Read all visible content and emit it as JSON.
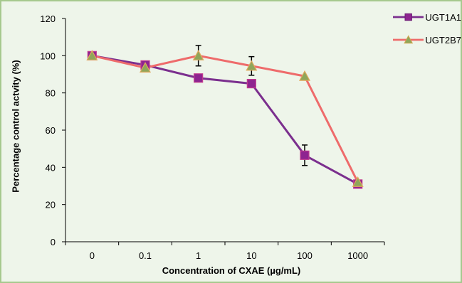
{
  "chart_data": {
    "type": "line",
    "categories": [
      "0",
      "0.1",
      "1",
      "10",
      "100",
      "1000"
    ],
    "series": [
      {
        "name": "UGT1A1",
        "values": [
          100,
          95,
          88,
          85,
          46.5,
          31
        ],
        "error": [
          0,
          0,
          0,
          0,
          5.5,
          0
        ],
        "color": "#7b2f8e",
        "marker": "square",
        "marker_color": "#8e2490"
      },
      {
        "name": "UGT2B7",
        "values": [
          100,
          93.5,
          100,
          94.5,
          89,
          32
        ],
        "error": [
          0,
          0,
          5.5,
          5,
          0,
          0
        ],
        "color": "#ee6b6b",
        "marker": "triangle",
        "marker_color": "#8fa65a"
      }
    ],
    "xlabel": "Concentration of CXAE (µg/mL)",
    "ylabel": "Percentage control actvity (%)",
    "ylim": [
      0,
      120
    ],
    "yticks": [
      0,
      20,
      40,
      60,
      80,
      100,
      120
    ],
    "grid": false,
    "legend_position": "top-right"
  }
}
